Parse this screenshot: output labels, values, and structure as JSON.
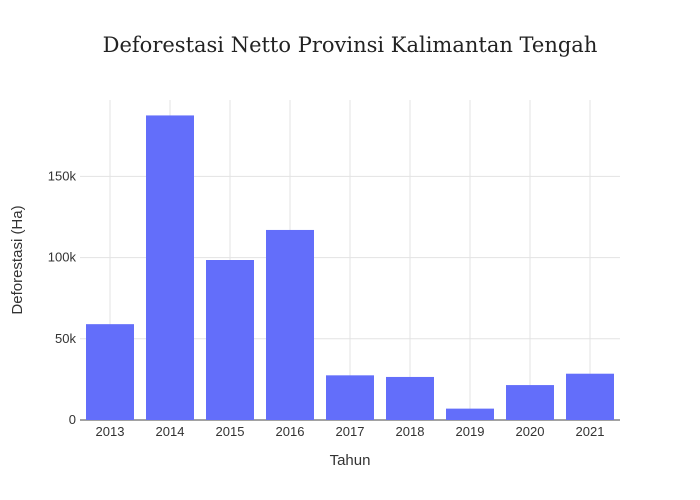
{
  "chart_data": {
    "type": "bar",
    "title": "Deforestasi Netto Provinsi Kalimantan Tengah",
    "xlabel": "Tahun",
    "ylabel": "Deforestasi (Ha)",
    "categories": [
      "2013",
      "2014",
      "2015",
      "2016",
      "2017",
      "2018",
      "2019",
      "2020",
      "2021"
    ],
    "values": [
      59000,
      187500,
      98500,
      117000,
      27500,
      26500,
      7000,
      21500,
      28500
    ],
    "ylim": [
      0,
      197000
    ],
    "yticks": [
      0,
      50000,
      100000,
      150000
    ],
    "ytick_labels": [
      "0",
      "50k",
      "100k",
      "150k"
    ],
    "grid": true,
    "legend": "none",
    "colors": {
      "bar": "#636efa",
      "grid": "#e3e3e3",
      "background": "#ffffff"
    }
  }
}
